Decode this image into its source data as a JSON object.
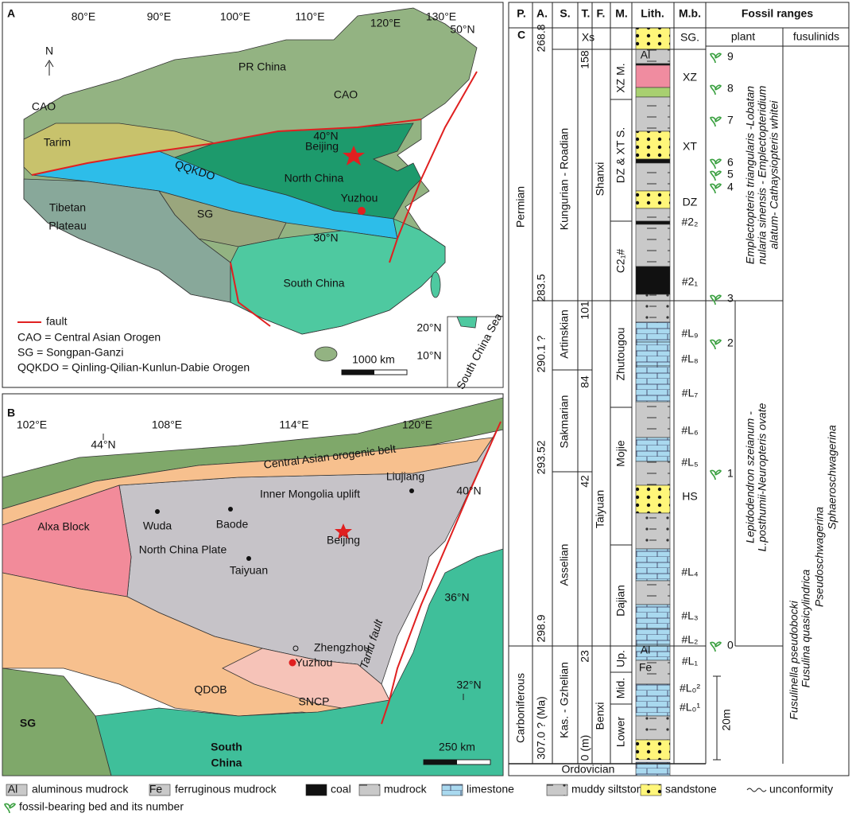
{
  "panel_a": {
    "label": "A",
    "longitudes": [
      "80°E",
      "90°E",
      "100°E",
      "110°E",
      "120°E",
      "130°E"
    ],
    "latitudes": [
      "50°N",
      "40°N",
      "30°N",
      "20°N",
      "10°N"
    ],
    "north": "N",
    "regions": [
      "PR China",
      "CAO",
      "CAO",
      "Tarim",
      "QQKDO",
      "North China",
      "Beijing",
      "Yuzhou",
      "SG",
      "Tibetan",
      "Plateau",
      "South China",
      "South China Sea"
    ],
    "legend": [
      "fault",
      "CAO = Central Asian Orogen",
      "SG = Songpan-Ganzi",
      "QQKDO = Qinling-Qilian-Kunlun-Dabie Orogen"
    ],
    "scale": "1000 km"
  },
  "panel_b": {
    "label": "B",
    "longitudes": [
      "102°E",
      "108°E",
      "114°E",
      "120°E"
    ],
    "latitudes": [
      "44°N",
      "40°N",
      "36°N",
      "32°N"
    ],
    "regions": [
      "Central Asian orogenic belt",
      "Inner Mongolia uplift",
      "Liujiang",
      "Alxa Block",
      "Wuda",
      "Baode",
      "Beijing",
      "North China Plate",
      "Taiyuan",
      "Zhengzhou",
      "Yuzhou",
      "Tanlu fault",
      "QDOB",
      "SNCP",
      "SG",
      "South",
      "China"
    ],
    "scale": "250 km"
  },
  "panel_c": {
    "label": "C",
    "headers": [
      "P.",
      "A.",
      "S.",
      "T.",
      "F.",
      "M.",
      "Lith.",
      "M.b.",
      "Fossil ranges"
    ],
    "subheaders": [
      "plant",
      "fusulinids"
    ],
    "periods": [
      "Permian",
      "Carboniferous"
    ],
    "ages": [
      "268.8",
      "283.5",
      "290.1 ?",
      "293.52",
      "298.9",
      "307.0 ? (Ma)"
    ],
    "stages": [
      "Kungurian - Roadian",
      "Artinskian",
      "Sakmarian",
      "Asselian",
      "Kas. - Gzhelian"
    ],
    "thickness": [
      "158",
      "101",
      "84",
      "42",
      "23",
      "0 (m)"
    ],
    "formations": [
      "Xs",
      "Shanxi",
      "Taiyuan",
      "Benxi",
      "Ordovician"
    ],
    "members": [
      "XZ M.",
      "DZ & XT S.",
      "C2₁#",
      "Zhutougou",
      "Mojie",
      "Dajian",
      "Up.",
      "Mid.",
      "Lower"
    ],
    "marker_beds": [
      "SG.",
      "XZ",
      "XT",
      "DZ",
      "#2₂",
      "#2₁",
      "#L₉",
      "#L₈",
      "#L₇",
      "#L₆",
      "#L₅",
      "HS",
      "#L₄",
      "#L₃",
      "#L₂",
      "#L₁",
      "#L₀²",
      "#L₀¹"
    ],
    "lith_labels": [
      "Al",
      "Al",
      "Fe"
    ],
    "fossil_beds": [
      "9",
      "8",
      "7",
      "6",
      "5",
      "4",
      "3",
      "2",
      "1",
      "0"
    ],
    "plant_upper": [
      "Emplectopteris triangularis -Lobatan",
      "nularia sinensis - Emplectopteridium",
      "alatum- Cathaysiopteris whitei"
    ],
    "plant_lower": [
      "Lepidodendron  szeianum -",
      "L.posthumii-Neuropteris ovate"
    ],
    "fusulinids": [
      "Fusulinella pseudobocki",
      "Fusulina quasicylindrica",
      "Pseudoschwagerina",
      "Sphaeroschwagerina"
    ],
    "scale": "20m"
  },
  "legend": {
    "items": [
      {
        "symbol": "Al",
        "label": "aluminous mudrock"
      },
      {
        "symbol": "Fe",
        "label": "ferruginous mudrock"
      },
      {
        "label": "coal"
      },
      {
        "label": "mudrock"
      },
      {
        "label": "limestone"
      },
      {
        "label": "muddy siltstone"
      },
      {
        "label": "sandstone"
      },
      {
        "label": "unconformity"
      },
      {
        "label": "fossil-bearing bed and its number"
      }
    ]
  }
}
